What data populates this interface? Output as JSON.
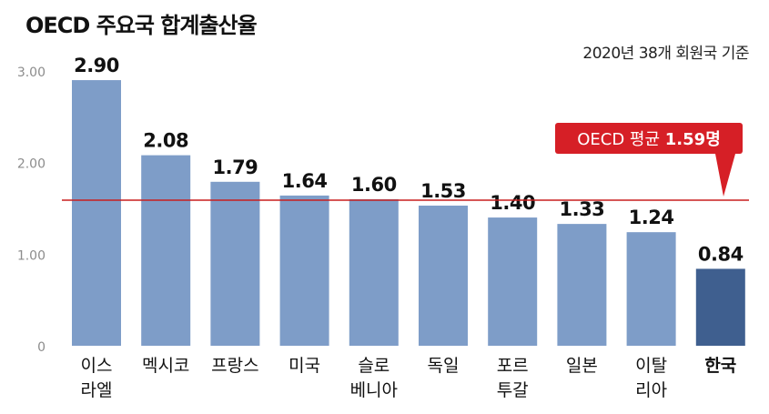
{
  "title": "OECD 주요국 합계출산율",
  "subtitle": "2020년 38개 회원국 기준",
  "colors": {
    "bar": "#7e9dc8",
    "highlight_bar": "#3f5f8f",
    "average_line": "#c81e1e",
    "callout_bg": "#d61f26",
    "axis_text": "#8c8c8c"
  },
  "chart_data": {
    "type": "bar",
    "categories": [
      "이스라엘",
      "멕시코",
      "프랑스",
      "미국",
      "슬로베니아",
      "독일",
      "포르투갈",
      "일본",
      "이탈리아",
      "한국"
    ],
    "category_lines": [
      [
        "이스",
        "라엘"
      ],
      [
        "멕시코"
      ],
      [
        "프랑스"
      ],
      [
        "미국"
      ],
      [
        "슬로",
        "베니아"
      ],
      [
        "독일"
      ],
      [
        "포르",
        "투갈"
      ],
      [
        "일본"
      ],
      [
        "이탈",
        "리아"
      ],
      [
        "한국"
      ]
    ],
    "values": [
      2.9,
      2.08,
      1.79,
      1.64,
      1.6,
      1.53,
      1.4,
      1.33,
      1.24,
      0.84
    ],
    "value_labels": [
      "2.90",
      "2.08",
      "1.79",
      "1.64",
      "1.60",
      "1.53",
      "1.40",
      "1.33",
      "1.24",
      "0.84"
    ],
    "highlight": "한국",
    "ylim": [
      0,
      3.0
    ],
    "yticks": [
      "3.00",
      "2.00",
      "1.00",
      "0"
    ],
    "ytick_values": [
      3,
      2,
      1,
      0
    ],
    "average": {
      "value": 1.59,
      "label_prefix": "OECD 평균",
      "label_value": "1.59명"
    },
    "xlabel": "",
    "ylabel": ""
  }
}
